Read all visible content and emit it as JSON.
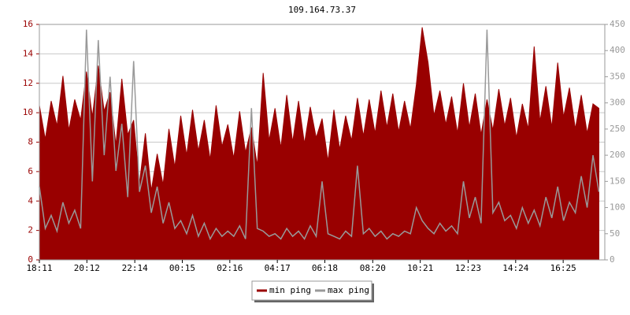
{
  "chart_data": {
    "type": "area-line",
    "title": "109.164.73.37",
    "x": [
      0,
      15,
      30,
      45,
      60,
      75,
      90,
      105,
      120,
      135,
      150,
      165,
      180,
      195,
      210,
      225,
      240,
      255,
      270,
      285,
      300,
      315,
      330,
      345,
      360,
      375,
      390,
      405,
      420,
      435,
      450,
      465,
      480,
      495,
      510,
      525,
      540,
      555,
      570,
      585,
      600,
      615,
      630,
      645,
      660,
      675,
      690,
      705,
      720,
      735,
      750,
      765,
      780,
      795,
      810,
      825,
      840,
      855,
      870,
      885,
      900,
      915,
      930,
      945,
      960,
      975,
      990,
      1005,
      1020,
      1035,
      1050,
      1065,
      1080,
      1095,
      1110,
      1125,
      1140,
      1155,
      1170,
      1185,
      1200,
      1215,
      1230,
      1245,
      1260,
      1275,
      1290,
      1305,
      1320,
      1335,
      1350,
      1365,
      1380,
      1395,
      1410,
      1425
    ],
    "xlim": [
      0,
      1440
    ],
    "xticks": [
      {
        "value": 0,
        "label": "18:11"
      },
      {
        "value": 121,
        "label": "20:12"
      },
      {
        "value": 243,
        "label": "22:14"
      },
      {
        "value": 364,
        "label": "00:15"
      },
      {
        "value": 485,
        "label": "02:16"
      },
      {
        "value": 606,
        "label": "04:17"
      },
      {
        "value": 727,
        "label": "06:18"
      },
      {
        "value": 849,
        "label": "08:20"
      },
      {
        "value": 970,
        "label": "10:21"
      },
      {
        "value": 1092,
        "label": "12:23"
      },
      {
        "value": 1213,
        "label": "14:24"
      },
      {
        "value": 1334,
        "label": "16:25"
      }
    ],
    "ylim": [
      0,
      16
    ],
    "yticks": [
      0,
      2,
      4,
      6,
      8,
      10,
      12,
      14,
      16
    ],
    "y2lim": [
      0,
      450
    ],
    "y2ticks": [
      0,
      50,
      100,
      150,
      200,
      250,
      300,
      350,
      400,
      450
    ],
    "grid": true,
    "series": [
      {
        "name": "min ping",
        "color": "#990000",
        "values": [
          10.5,
          8.2,
          10.8,
          9.1,
          12.5,
          8.8,
          10.9,
          9.5,
          12.8,
          9.7,
          13.2,
          10.1,
          11.4,
          7.8,
          12.3,
          8.5,
          9.5,
          5.2,
          8.6,
          4.7,
          7.2,
          5.1,
          8.9,
          6.3,
          9.8,
          7.1,
          10.2,
          7.4,
          9.5,
          6.8,
          10.5,
          7.7,
          9.2,
          6.9,
          10.1,
          7.3,
          9.0,
          6.4,
          12.7,
          8.1,
          10.3,
          7.6,
          11.2,
          8.0,
          10.8,
          7.9,
          10.4,
          8.3,
          9.6,
          6.7,
          10.2,
          7.5,
          9.8,
          8.1,
          11.0,
          8.4,
          10.9,
          8.6,
          11.5,
          9.0,
          11.3,
          8.7,
          10.8,
          8.9,
          11.9,
          15.8,
          13.4,
          9.8,
          11.5,
          9.2,
          11.1,
          8.6,
          12.0,
          9.0,
          11.3,
          8.5,
          10.9,
          8.8,
          11.6,
          9.1,
          11.0,
          8.3,
          10.6,
          8.9,
          14.5,
          9.4,
          11.8,
          9.0,
          13.4,
          9.7,
          11.7,
          8.9,
          11.2,
          8.6,
          10.6,
          10.3
        ]
      },
      {
        "name": "max ping",
        "color": "#999999",
        "axis": "y2",
        "values": [
          140,
          60,
          85,
          55,
          110,
          70,
          95,
          60,
          440,
          150,
          420,
          200,
          350,
          170,
          260,
          120,
          380,
          130,
          180,
          90,
          140,
          70,
          110,
          60,
          75,
          50,
          85,
          45,
          70,
          40,
          60,
          45,
          55,
          45,
          65,
          40,
          290,
          60,
          55,
          45,
          50,
          40,
          60,
          45,
          55,
          40,
          65,
          45,
          150,
          50,
          45,
          40,
          55,
          45,
          180,
          50,
          60,
          45,
          55,
          40,
          50,
          45,
          55,
          50,
          100,
          75,
          60,
          50,
          70,
          55,
          65,
          50,
          150,
          80,
          120,
          70,
          440,
          90,
          110,
          75,
          85,
          60,
          100,
          70,
          95,
          65,
          120,
          80,
          140,
          75,
          110,
          90,
          160,
          100,
          200,
          130
        ]
      }
    ]
  }
}
